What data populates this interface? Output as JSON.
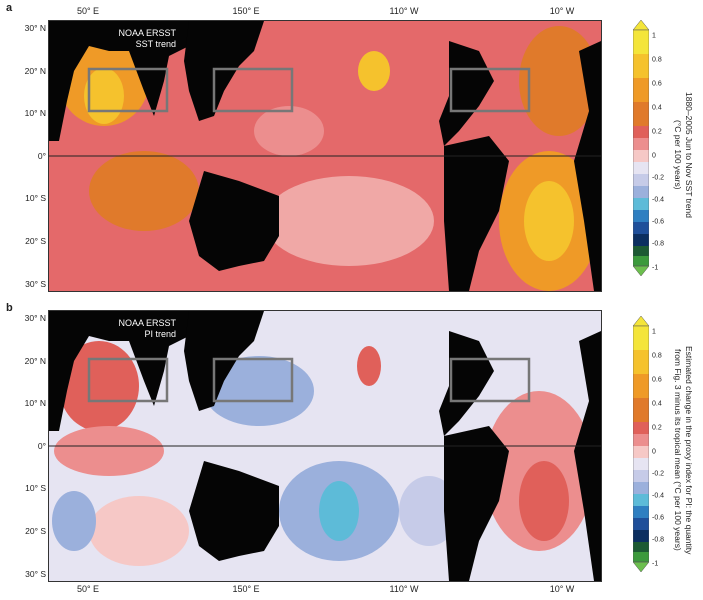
{
  "panels": [
    {
      "letter": "a",
      "overlay_title": [
        "NOAA ERSST",
        "SST trend"
      ],
      "colorbar_label": [
        "1880–2005 Jun to Nov SST trend",
        "(°C per 100 years)"
      ]
    },
    {
      "letter": "b",
      "overlay_title": [
        "NOAA ERSST",
        "PI trend"
      ],
      "colorbar_label": [
        "Estimated change in the proxy index for PI: the quantity",
        "from Fig. 3 minus its tropical mean (°C per 100 years)"
      ]
    }
  ],
  "lon_ticks": [
    "50° E",
    "150° E",
    "110° W",
    "10° W"
  ],
  "lat_ticks": [
    "30° N",
    "20° N",
    "10° N",
    "0°",
    "10° S",
    "20° S",
    "30° S"
  ],
  "colorbar_ticks": [
    "1",
    "0.8",
    "0.6",
    "0.4",
    "0.2",
    "0",
    "-0.2",
    "-0.4",
    "-0.6",
    "-0.8",
    "-1"
  ],
  "colors": {
    "land": "#050505",
    "warm_scale": [
      "#f4e53a",
      "#f5c22d",
      "#ef9a27",
      "#e07a2b",
      "#e0605a",
      "#ec8e8e",
      "#f6c8c6"
    ],
    "cool_scale": [
      "#e6e4f2",
      "#c6cbe8",
      "#9bb0dc",
      "#5dbbd8",
      "#2f7fc1",
      "#1f4f9a",
      "#0c2f60",
      "#1d5a33",
      "#3c9a3c",
      "#6cbf4e"
    ]
  }
}
